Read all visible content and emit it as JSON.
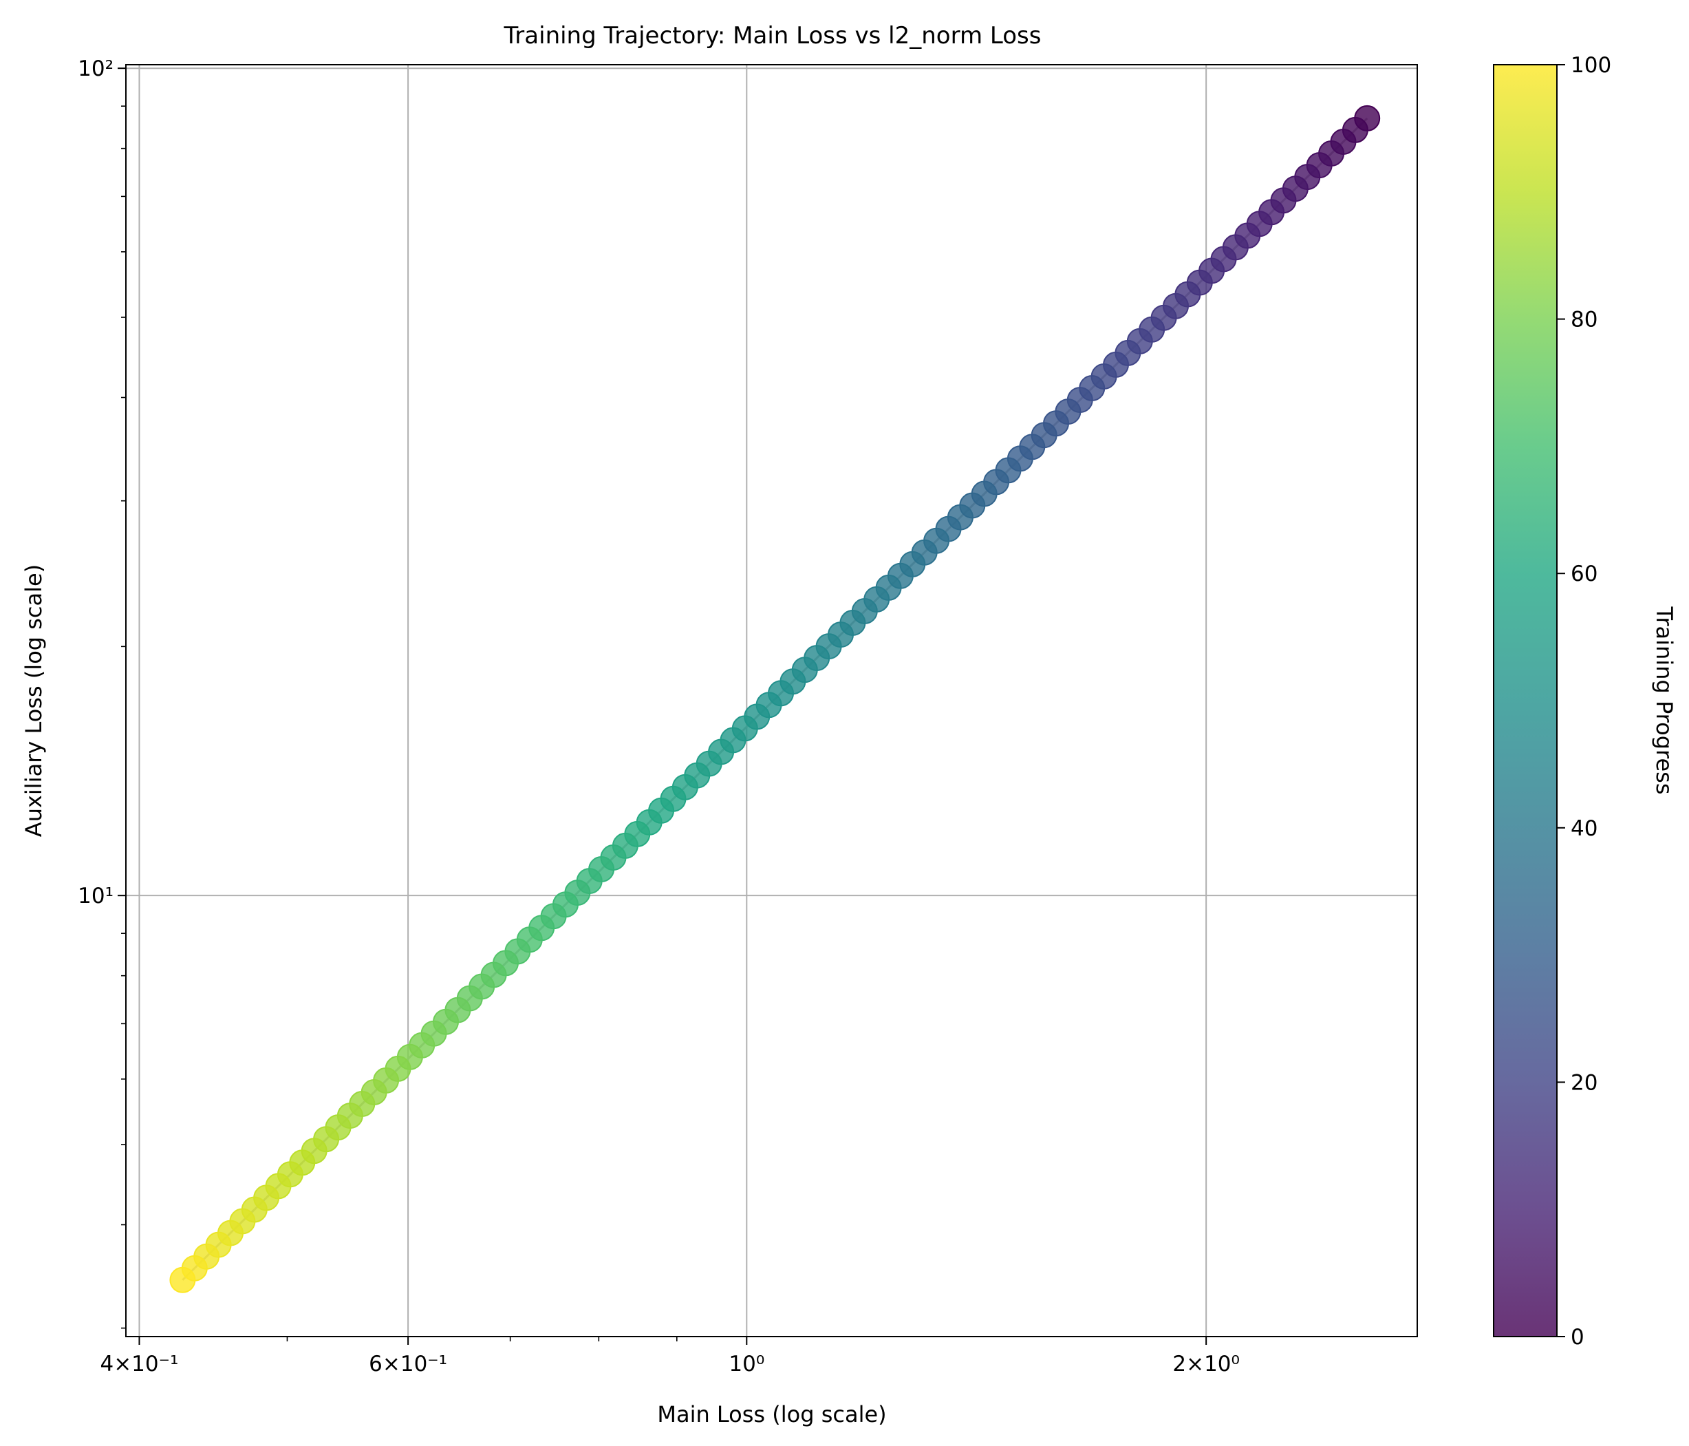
{
  "chart_data": {
    "type": "scatter",
    "title": "Training Trajectory: Main Loss vs l2_norm Loss",
    "xlabel": "Main Loss (log scale)",
    "ylabel": "Auxiliary Loss (log scale)",
    "xscale": "log",
    "yscale": "log",
    "xlim": [
      0.392,
      2.75
    ],
    "ylim": [
      2.93,
      101
    ],
    "grid": true,
    "x_major_ticks": [
      {
        "value": 0.4,
        "label": "4×10⁻¹"
      },
      {
        "value": 0.6,
        "label": "6×10⁻¹"
      },
      {
        "value": 1,
        "label": "10⁰"
      },
      {
        "value": 2,
        "label": "2×10⁰"
      }
    ],
    "x_minor_ticks": [
      0.5,
      0.7,
      0.8,
      0.9,
      3
    ],
    "y_major_ticks": [
      {
        "value": 10,
        "label": "10¹"
      },
      {
        "value": 100,
        "label": "10²"
      }
    ],
    "y_minor_ticks": [
      3,
      4,
      5,
      6,
      7,
      8,
      9,
      20,
      30,
      40,
      50,
      60,
      70,
      80,
      90
    ],
    "trajectory_line_color": "#bbbbbb",
    "colorbar": {
      "label": "Training Progress",
      "colormap": "viridis",
      "min": 0,
      "max": 100,
      "ticks": [
        {
          "value": 0,
          "label": "0"
        },
        {
          "value": 20,
          "label": "20"
        },
        {
          "value": 40,
          "label": "40"
        },
        {
          "value": 60,
          "label": "60"
        },
        {
          "value": 80,
          "label": "80"
        },
        {
          "value": 100,
          "label": "100"
        }
      ]
    },
    "points": {
      "count": 100,
      "x_start": 2.55,
      "x_end": 0.427,
      "y_start": 87.0,
      "y_end": 3.43,
      "decay": "exponential",
      "progress_start": 0,
      "progress_end": 100
    }
  }
}
